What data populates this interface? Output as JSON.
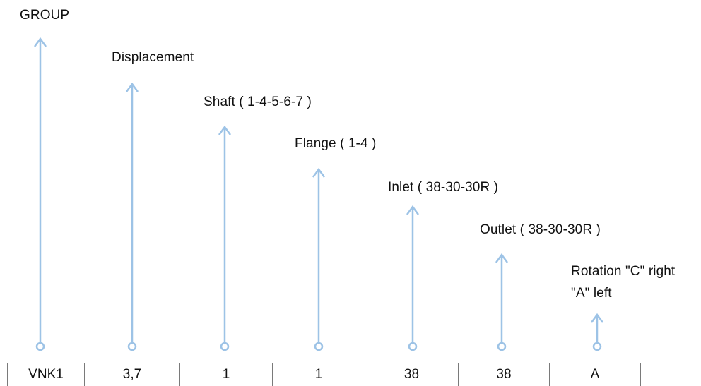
{
  "labels": {
    "group": "GROUP",
    "displacement": "Displacement",
    "shaft": "Shaft ( 1-4-5-6-7 )",
    "flange": "Flange ( 1-4 )",
    "inlet": "Inlet ( 38-30-30R )",
    "outlet": "Outlet ( 38-30-30R )",
    "rotation_line1": "Rotation \"C\" right",
    "rotation_line2": "\"A\" left"
  },
  "code": [
    "VNK1",
    "3,7",
    "1",
    "1",
    "38",
    "38",
    "A"
  ],
  "colors": {
    "arrow": "#9dc3e6",
    "table_border": "#7a7a7a",
    "text": "#111111"
  }
}
